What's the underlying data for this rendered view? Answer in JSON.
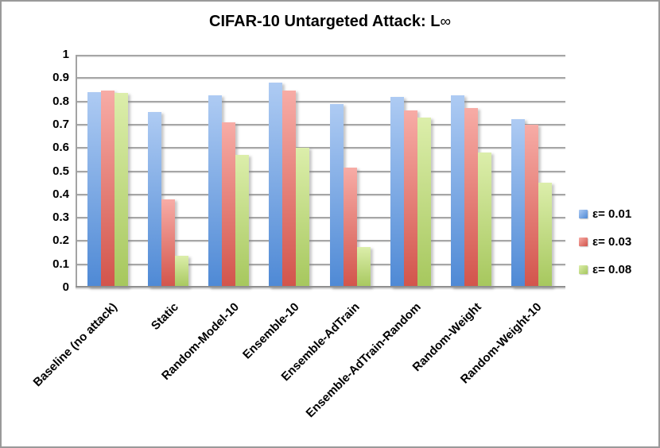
{
  "window": {
    "border_color": "#999999",
    "background": "#ffffff"
  },
  "chart_data": {
    "type": "bar",
    "title": "CIFAR-10 Untargeted Attack: L∞",
    "categories": [
      "Baseline (no attack)",
      "Static",
      "Random-Model-10",
      "Ensemble-10",
      "Ensemble-AdTrain",
      "Ensemble-AdTrain-Random",
      "Random-Weight",
      "Random-Weight-10"
    ],
    "series": [
      {
        "name": "ε= 0.01",
        "color_top": "#AECBF3",
        "color_bottom": "#4E89D5",
        "values": [
          0.84,
          0.755,
          0.825,
          0.88,
          0.79,
          0.82,
          0.825,
          0.725
        ]
      },
      {
        "name": "ε= 0.03",
        "color_top": "#F7ACA6",
        "color_bottom": "#D2544B",
        "values": [
          0.845,
          0.38,
          0.71,
          0.845,
          0.515,
          0.76,
          0.77,
          0.7
        ]
      },
      {
        "name": "ε= 0.08",
        "color_top": "#DCEEAB",
        "color_bottom": "#A6C75D",
        "values": [
          0.835,
          0.135,
          0.57,
          0.6,
          0.175,
          0.73,
          0.58,
          0.45
        ]
      }
    ],
    "ylim": [
      0,
      1
    ],
    "ytick_step": 0.1,
    "yticks_top_to_bottom": [
      "1",
      "0.9",
      "0.8",
      "0.7",
      "0.6",
      "0.5",
      "0.4",
      "0.3",
      "0.2",
      "0.1",
      "0"
    ],
    "grid": true,
    "gridline_color": "#a6a6a6",
    "axis_line_color": "#8f8f8f",
    "legend_position": "right"
  }
}
